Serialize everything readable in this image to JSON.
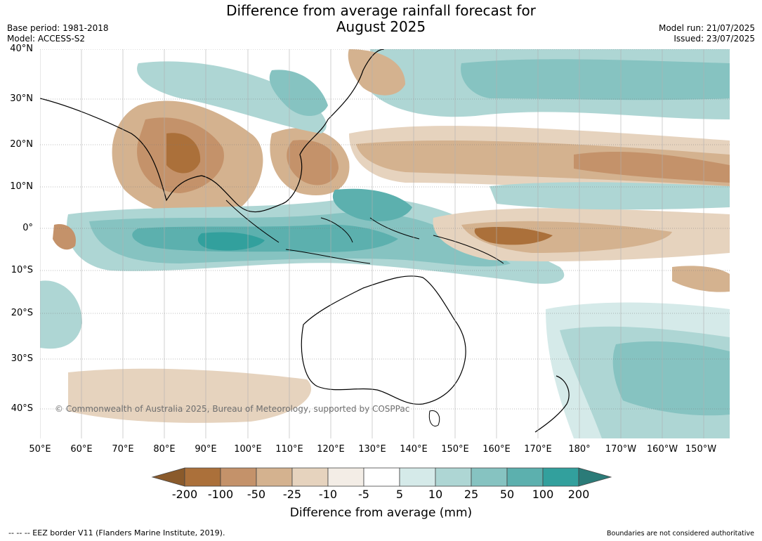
{
  "title_line1": "Difference from average rainfall forecast for",
  "title_line2": "August 2025",
  "meta_left": {
    "base_period": "Base period: 1981-2018",
    "model": "Model: ACCESS-S2"
  },
  "meta_right": {
    "model_run": "Model run: 21/07/2025",
    "issued": "Issued: 23/07/2025"
  },
  "lat_labels": [
    "40°N",
    "30°N",
    "20°N",
    "10°N",
    "0°",
    "10°S",
    "20°S",
    "30°S",
    "40°S"
  ],
  "lon_labels": [
    "50°E",
    "60°E",
    "70°E",
    "80°E",
    "90°E",
    "100°E",
    "110°E",
    "120°E",
    "130°E",
    "140°E",
    "150°E",
    "160°E",
    "170°E",
    "180°",
    "170°W",
    "160°W",
    "150°W"
  ],
  "copyright": "© Commonwealth of Australia 2025, Bureau of Meteorology, supported by COSPPac",
  "colorbar": {
    "title": "Difference from average (mm)",
    "ticks": [
      "-200",
      "-100",
      "-50",
      "-25",
      "-10",
      "-5",
      "5",
      "10",
      "25",
      "50",
      "100",
      "200"
    ],
    "colors": [
      "#8a5a2b",
      "#ab703a",
      "#c4926a",
      "#d4b28f",
      "#e6d3be",
      "#f3ede6",
      "#ffffff",
      "#d5eae9",
      "#aed6d4",
      "#86c3c1",
      "#5cb0ae",
      "#32a09d",
      "#2b7b78"
    ]
  },
  "eez_note": "-- -- -- EEZ border V11 (Flanders Marine Institute, 2019).",
  "auth_note": "Boundaries are not considered authoritative"
}
